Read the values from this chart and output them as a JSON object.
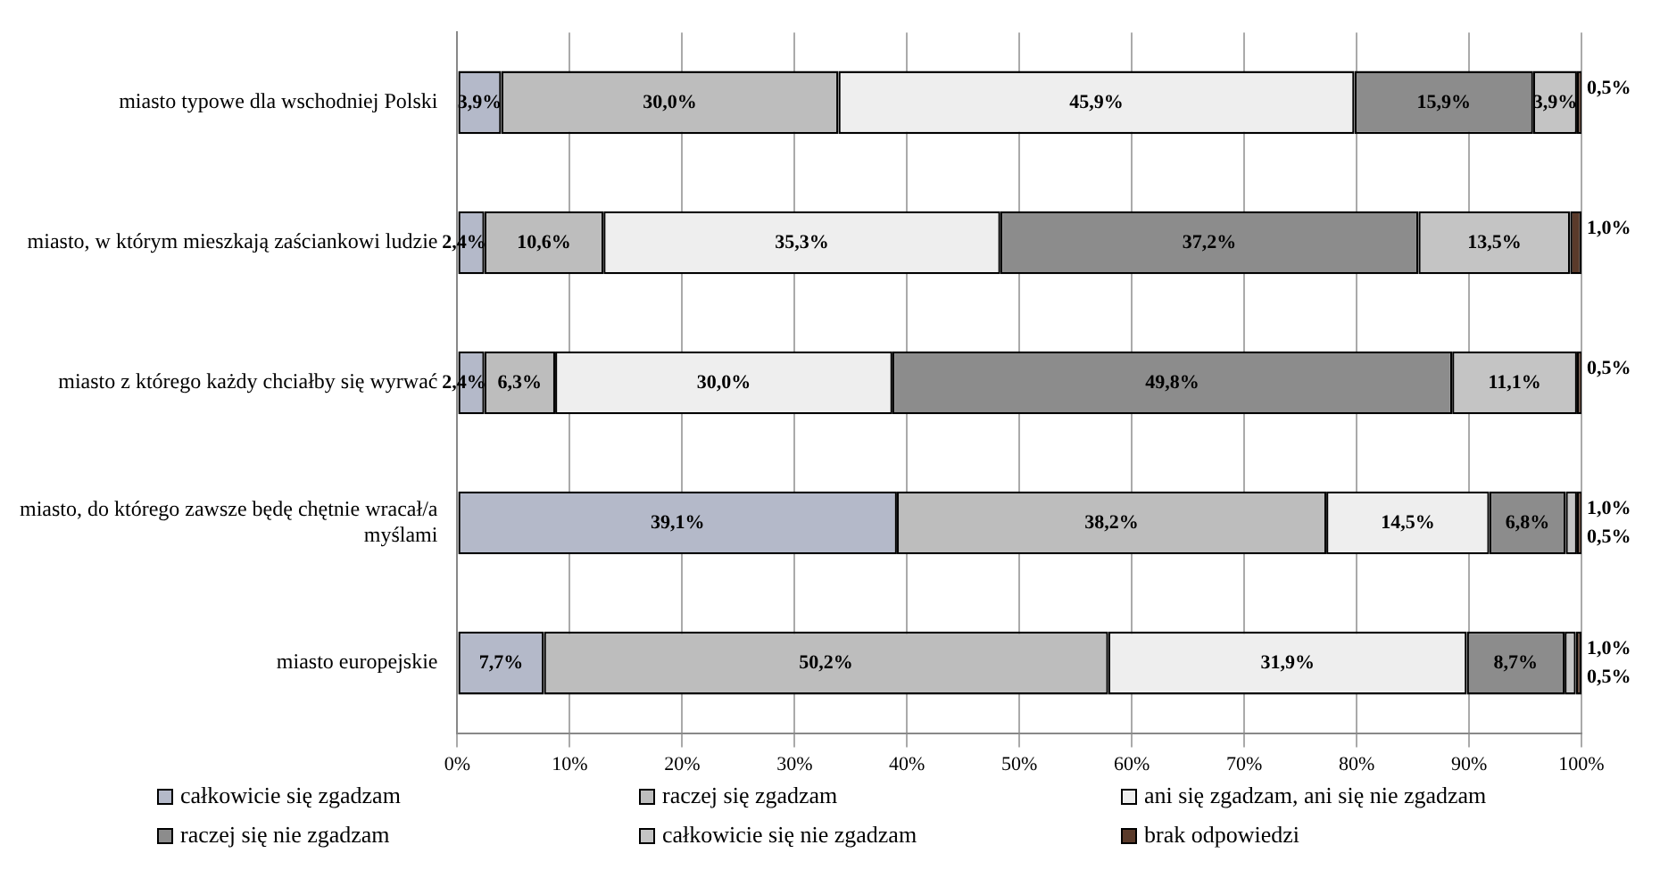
{
  "chart_data": {
    "type": "bar",
    "orientation": "horizontal",
    "stacked": true,
    "categories": [
      "miasto typowe dla wschodniej Polski",
      "miasto, w którym mieszkają zaściankowi ludzie",
      "miasto z którego każdy chciałby się wyrwać",
      "miasto, do którego zawsze będę chętnie wracał/a myślami",
      "miasto europejskie"
    ],
    "series": [
      {
        "name": "całkowicie się zgadzam",
        "color": "#b4b9c9",
        "values": [
          3.9,
          2.4,
          2.4,
          39.1,
          7.7
        ],
        "value_labels": [
          "3,9%",
          "2,4%",
          "2,4%",
          "39,1%",
          "7,7%"
        ]
      },
      {
        "name": "raczej się zgadzam",
        "color": "#bdbdbd",
        "values": [
          30.0,
          10.6,
          6.3,
          38.2,
          50.2
        ],
        "value_labels": [
          "30,0%",
          "10,6%",
          "6,3%",
          "38,2%",
          "50,2%"
        ]
      },
      {
        "name": "ani się zgadzam, ani się nie zgadzam",
        "color": "#eeeeee",
        "values": [
          45.9,
          35.3,
          30.0,
          14.5,
          31.9
        ],
        "value_labels": [
          "45,9%",
          "35,3%",
          "30,0%",
          "14,5%",
          "31,9%"
        ]
      },
      {
        "name": "raczej się nie zgadzam",
        "color": "#8c8c8c",
        "values": [
          15.9,
          37.2,
          49.8,
          6.8,
          8.7
        ],
        "value_labels": [
          "15,9%",
          "37,2%",
          "49,8%",
          "6,8%",
          "8,7%"
        ]
      },
      {
        "name": "całkowicie się nie zgadzam",
        "color": "#c4c4c4",
        "values": [
          3.9,
          13.5,
          11.1,
          1.0,
          1.0
        ],
        "value_labels": [
          "3,9%",
          "13,5%",
          "11,1%",
          "1,0%",
          "1,0%"
        ]
      },
      {
        "name": "brak odpowiedzi",
        "color": "#5a3a2a",
        "values": [
          0.5,
          1.0,
          0.5,
          0.5,
          0.5
        ],
        "value_labels": [
          "0,5%",
          "1,0%",
          "0,5%",
          "0,5%",
          "0,5%"
        ]
      }
    ],
    "xlim": [
      0,
      100
    ],
    "xticks": [
      {
        "value": 0,
        "label": "0%"
      },
      {
        "value": 10,
        "label": "10%"
      },
      {
        "value": 20,
        "label": "20%"
      },
      {
        "value": 30,
        "label": "30%"
      },
      {
        "value": 40,
        "label": "40%"
      },
      {
        "value": 50,
        "label": "50%"
      },
      {
        "value": 60,
        "label": "60%"
      },
      {
        "value": 70,
        "label": "70%"
      },
      {
        "value": 80,
        "label": "80%"
      },
      {
        "value": 90,
        "label": "90%"
      },
      {
        "value": 100,
        "label": "100%"
      }
    ],
    "grid": "x",
    "legend": "bottom"
  }
}
